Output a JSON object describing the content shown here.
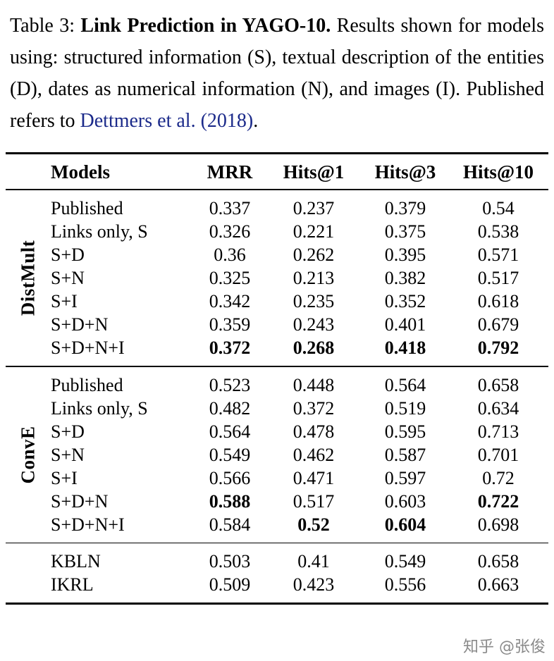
{
  "caption": {
    "tag": "Table 3:",
    "title": "Link Prediction in YAGO-10.",
    "body": "Results shown for models using: structured information (S), textual description of the entities (D), dates as numerical information (N), and images (I). Published refers to",
    "link": "Dettmers et al. (2018)",
    "after_link": "."
  },
  "colors": {
    "citation_link": "#1b2a8a",
    "watermark": "#8a8a8a",
    "rule": "#000000"
  },
  "table": {
    "headers": [
      "Models",
      "MRR",
      "Hits@1",
      "Hits@3",
      "Hits@10"
    ],
    "groups": [
      {
        "label": "DistMult",
        "rows": [
          {
            "model": "Published",
            "values": [
              "0.337",
              "0.237",
              "0.379",
              "0.54"
            ]
          },
          {
            "model": "Links only, S",
            "values": [
              "0.326",
              "0.221",
              "0.375",
              "0.538"
            ]
          },
          {
            "model": "S+D",
            "values": [
              "0.36",
              "0.262",
              "0.395",
              "0.571"
            ]
          },
          {
            "model": "S+N",
            "values": [
              "0.325",
              "0.213",
              "0.382",
              "0.517"
            ]
          },
          {
            "model": "S+I",
            "values": [
              "0.342",
              "0.235",
              "0.352",
              "0.618"
            ]
          },
          {
            "model": "S+D+N",
            "values": [
              "0.359",
              "0.243",
              "0.401",
              "0.679"
            ]
          },
          {
            "model": "S+D+N+I",
            "values": [
              "0.372",
              "0.268",
              "0.418",
              "0.792"
            ]
          }
        ]
      },
      {
        "label": "ConvE",
        "rows": [
          {
            "model": "Published",
            "values": [
              "0.523",
              "0.448",
              "0.564",
              "0.658"
            ]
          },
          {
            "model": "Links only, S",
            "values": [
              "0.482",
              "0.372",
              "0.519",
              "0.634"
            ]
          },
          {
            "model": "S+D",
            "values": [
              "0.564",
              "0.478",
              "0.595",
              "0.713"
            ]
          },
          {
            "model": "S+N",
            "values": [
              "0.549",
              "0.462",
              "0.587",
              "0.701"
            ]
          },
          {
            "model": "S+I",
            "values": [
              "0.566",
              "0.471",
              "0.597",
              "0.72"
            ]
          },
          {
            "model": "S+D+N",
            "values": [
              "0.588",
              "0.517",
              "0.603",
              "0.722"
            ]
          },
          {
            "model": "S+D+N+I",
            "values": [
              "0.584",
              "0.52",
              "0.604",
              "0.698"
            ]
          }
        ]
      },
      {
        "label": "",
        "rows": [
          {
            "model": "KBLN",
            "values": [
              "0.503",
              "0.41",
              "0.549",
              "0.658"
            ]
          },
          {
            "model": "IKRL",
            "values": [
              "0.509",
              "0.423",
              "0.556",
              "0.663"
            ]
          }
        ]
      }
    ]
  },
  "watermark": "知乎 @张俊"
}
